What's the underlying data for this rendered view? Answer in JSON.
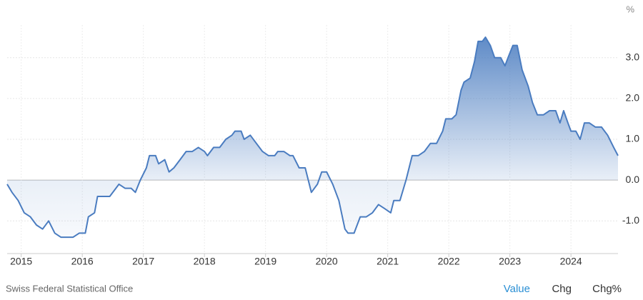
{
  "chart_data": {
    "type": "area",
    "y_unit": "%",
    "source": "Swiss Federal Statistical Office",
    "color": "#4a7cc0",
    "grid": true,
    "xlim": [
      2014.77,
      2024.77
    ],
    "xticks": [
      2015,
      2016,
      2017,
      2018,
      2019,
      2020,
      2021,
      2022,
      2023,
      2024
    ],
    "ylim": [
      -1.8,
      3.8
    ],
    "yticks": [
      {
        "value": -1,
        "label": "-1.0"
      },
      {
        "value": 0,
        "label": "0.0"
      },
      {
        "value": 1,
        "label": "1.0"
      },
      {
        "value": 2,
        "label": "2.0"
      },
      {
        "value": 3,
        "label": "3.0"
      }
    ],
    "x": [
      2014.77,
      2014.85,
      2014.95,
      2015.05,
      2015.15,
      2015.25,
      2015.35,
      2015.45,
      2015.55,
      2015.65,
      2015.75,
      2015.85,
      2015.95,
      2016.05,
      2016.1,
      2016.2,
      2016.25,
      2016.35,
      2016.45,
      2016.55,
      2016.6,
      2016.7,
      2016.8,
      2016.87,
      2016.95,
      2017.05,
      2017.1,
      2017.2,
      2017.25,
      2017.35,
      2017.42,
      2017.5,
      2017.6,
      2017.7,
      2017.8,
      2017.9,
      2018.0,
      2018.05,
      2018.15,
      2018.25,
      2018.35,
      2018.45,
      2018.5,
      2018.6,
      2018.65,
      2018.75,
      2018.85,
      2018.95,
      2019.05,
      2019.15,
      2019.2,
      2019.3,
      2019.4,
      2019.45,
      2019.55,
      2019.65,
      2019.75,
      2019.85,
      2019.92,
      2020.0,
      2020.1,
      2020.2,
      2020.3,
      2020.35,
      2020.45,
      2020.55,
      2020.65,
      2020.75,
      2020.85,
      2020.95,
      2021.05,
      2021.1,
      2021.2,
      2021.3,
      2021.4,
      2021.5,
      2021.6,
      2021.7,
      2021.8,
      2021.9,
      2021.95,
      2022.05,
      2022.12,
      2022.2,
      2022.25,
      2022.35,
      2022.42,
      2022.48,
      2022.55,
      2022.6,
      2022.68,
      2022.75,
      2022.85,
      2022.92,
      2022.97,
      2023.05,
      2023.12,
      2023.2,
      2023.3,
      2023.37,
      2023.45,
      2023.55,
      2023.65,
      2023.75,
      2023.82,
      2023.88,
      2023.95,
      2024.0,
      2024.08,
      2024.15,
      2024.22,
      2024.3,
      2024.4,
      2024.5,
      2024.6,
      2024.7,
      2024.77
    ],
    "values": [
      -0.1,
      -0.3,
      -0.5,
      -0.8,
      -0.9,
      -1.1,
      -1.2,
      -1.0,
      -1.3,
      -1.4,
      -1.4,
      -1.4,
      -1.3,
      -1.3,
      -0.9,
      -0.8,
      -0.4,
      -0.4,
      -0.4,
      -0.2,
      -0.1,
      -0.2,
      -0.2,
      -0.3,
      0.0,
      0.3,
      0.6,
      0.6,
      0.4,
      0.5,
      0.2,
      0.3,
      0.5,
      0.7,
      0.7,
      0.8,
      0.7,
      0.6,
      0.8,
      0.8,
      1.0,
      1.1,
      1.2,
      1.2,
      1.0,
      1.1,
      0.9,
      0.7,
      0.6,
      0.6,
      0.7,
      0.7,
      0.6,
      0.6,
      0.3,
      0.3,
      -0.3,
      -0.1,
      0.2,
      0.2,
      -0.1,
      -0.5,
      -1.2,
      -1.3,
      -1.3,
      -0.9,
      -0.9,
      -0.8,
      -0.6,
      -0.7,
      -0.8,
      -0.5,
      -0.5,
      0.0,
      0.6,
      0.6,
      0.7,
      0.9,
      0.9,
      1.2,
      1.5,
      1.5,
      1.6,
      2.2,
      2.4,
      2.5,
      2.9,
      3.4,
      3.4,
      3.5,
      3.3,
      3.0,
      3.0,
      2.8,
      3.0,
      3.3,
      3.3,
      2.7,
      2.3,
      1.9,
      1.6,
      1.6,
      1.7,
      1.7,
      1.4,
      1.7,
      1.4,
      1.2,
      1.2,
      1.0,
      1.4,
      1.4,
      1.3,
      1.3,
      1.1,
      0.8,
      0.6
    ]
  },
  "tabs": [
    "Value",
    "Chg",
    "Chg%"
  ]
}
